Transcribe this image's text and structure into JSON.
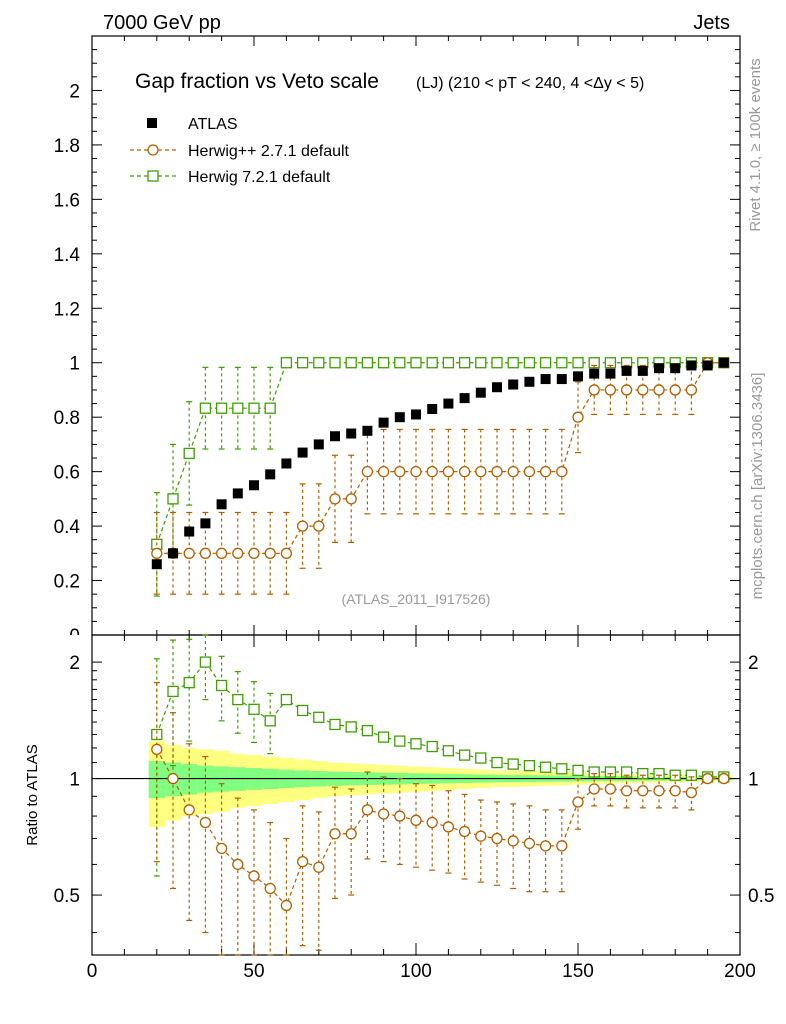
{
  "header": {
    "left": "7000 GeV pp",
    "right": "Jets"
  },
  "side_labels": {
    "rivet": "Rivet 4.1.0, ≥ 100k events",
    "mcplots": "mcplots.cern.ch [arXiv:1306.3436]"
  },
  "main_title": "Gap fraction vs Veto scale",
  "main_subtitle": "(LJ) (210 < pT < 240, 4 <Δy < 5)",
  "analysis_id": "(ATLAS_2011_I917526)",
  "colors": {
    "atlas": "#000000",
    "herwig_pp": "#b35f00",
    "herwig7": "#3f9f00",
    "band_outer": "#ffff80",
    "band_inner": "#80ff80"
  },
  "chart_data": [
    {
      "type": "scatter",
      "panel": "main",
      "xlabel": "",
      "ylabel": "",
      "xlim": [
        0,
        200
      ],
      "ylim": [
        0,
        2.2
      ],
      "yticks": [
        "0.2",
        "0.4",
        "0.6",
        "0.8",
        "1",
        "1.2",
        "1.4",
        "1.6",
        "1.8",
        "2"
      ],
      "legend_position": "top-left",
      "x": [
        20,
        25,
        30,
        35,
        40,
        45,
        50,
        55,
        60,
        65,
        70,
        75,
        80,
        85,
        90,
        95,
        100,
        105,
        110,
        115,
        120,
        125,
        130,
        135,
        140,
        145,
        150,
        155,
        160,
        165,
        170,
        175,
        180,
        185,
        190,
        195
      ],
      "series": [
        {
          "name": "ATLAS",
          "marker": "filled-square",
          "values": [
            0.26,
            0.3,
            0.38,
            0.41,
            0.48,
            0.52,
            0.55,
            0.59,
            0.63,
            0.67,
            0.7,
            0.73,
            0.74,
            0.75,
            0.78,
            0.8,
            0.81,
            0.83,
            0.85,
            0.87,
            0.89,
            0.91,
            0.92,
            0.93,
            0.94,
            0.94,
            0.95,
            0.96,
            0.96,
            0.97,
            0.97,
            0.98,
            0.98,
            0.99,
            0.99,
            1.0
          ]
        },
        {
          "name": "Herwig++ 2.7.1 default",
          "marker": "open-circle",
          "values": [
            0.3,
            0.3,
            0.3,
            0.3,
            0.3,
            0.3,
            0.3,
            0.3,
            0.3,
            0.4,
            0.4,
            0.5,
            0.5,
            0.6,
            0.6,
            0.6,
            0.6,
            0.6,
            0.6,
            0.6,
            0.6,
            0.6,
            0.6,
            0.6,
            0.6,
            0.6,
            0.8,
            0.9,
            0.9,
            0.9,
            0.9,
            0.9,
            0.9,
            0.9,
            1.0,
            1.0
          ],
          "errors": [
            0.15,
            0.15,
            0.15,
            0.15,
            0.15,
            0.15,
            0.15,
            0.15,
            0.15,
            0.155,
            0.155,
            0.16,
            0.16,
            0.155,
            0.155,
            0.155,
            0.155,
            0.155,
            0.155,
            0.155,
            0.155,
            0.155,
            0.155,
            0.155,
            0.155,
            0.155,
            0.13,
            0.09,
            0.09,
            0.09,
            0.09,
            0.09,
            0.09,
            0.09,
            0.01,
            0.01
          ]
        },
        {
          "name": "Herwig 7.2.1 default",
          "marker": "open-square",
          "values": [
            0.333,
            0.5,
            0.667,
            0.833,
            0.833,
            0.833,
            0.833,
            0.833,
            1.0,
            1.0,
            1.0,
            1.0,
            1.0,
            1.0,
            1.0,
            1.0,
            1.0,
            1.0,
            1.0,
            1.0,
            1.0,
            1.0,
            1.0,
            1.0,
            1.0,
            1.0,
            1.0,
            1.0,
            1.0,
            1.0,
            1.0,
            1.0,
            1.0,
            1.0,
            1.0,
            1.0
          ],
          "errors": [
            0.19,
            0.2,
            0.19,
            0.15,
            0.15,
            0.15,
            0.15,
            0.15,
            0.01,
            0.01,
            0.01,
            0.01,
            0.01,
            0.01,
            0.01,
            0.01,
            0.01,
            0.01,
            0.01,
            0.01,
            0.01,
            0.01,
            0.01,
            0.01,
            0.01,
            0.01,
            0.01,
            0.01,
            0.01,
            0.01,
            0.01,
            0.01,
            0.01,
            0.01,
            0.01,
            0.01
          ]
        }
      ]
    },
    {
      "type": "scatter",
      "panel": "ratio",
      "xlabel": "",
      "ylabel": "Ratio to ATLAS",
      "xlim": [
        0,
        200
      ],
      "ylim": [
        0.35,
        2.35
      ],
      "ytick_values": [
        0.5,
        1,
        2
      ],
      "yticks": [
        "0.5",
        "1",
        "2"
      ],
      "xticks": [
        "0",
        "50",
        "100",
        "150",
        "200"
      ],
      "x": [
        20,
        25,
        30,
        35,
        40,
        45,
        50,
        55,
        60,
        65,
        70,
        75,
        80,
        85,
        90,
        95,
        100,
        105,
        110,
        115,
        120,
        125,
        130,
        135,
        140,
        145,
        150,
        155,
        160,
        165,
        170,
        175,
        180,
        185,
        190,
        195
      ],
      "band": {
        "outer_half_width": [
          0.25,
          0.22,
          0.2,
          0.19,
          0.18,
          0.16,
          0.15,
          0.14,
          0.13,
          0.12,
          0.11,
          0.1,
          0.095,
          0.09,
          0.085,
          0.08,
          0.075,
          0.07,
          0.065,
          0.06,
          0.055,
          0.05,
          0.048,
          0.045,
          0.042,
          0.04,
          0.035,
          0.03,
          0.028,
          0.026,
          0.024,
          0.022,
          0.02,
          0.018,
          0.016,
          0.015
        ],
        "inner_half_width": [
          0.11,
          0.1,
          0.09,
          0.08,
          0.075,
          0.07,
          0.065,
          0.06,
          0.055,
          0.05,
          0.046,
          0.042,
          0.04,
          0.038,
          0.036,
          0.034,
          0.032,
          0.03,
          0.028,
          0.026,
          0.024,
          0.022,
          0.021,
          0.02,
          0.019,
          0.018,
          0.016,
          0.015,
          0.014,
          0.013,
          0.012,
          0.011,
          0.01,
          0.009,
          0.008,
          0.008
        ]
      },
      "series": [
        {
          "name": "Herwig++ 2.7.1 default",
          "values": [
            1.19,
            1.0,
            0.83,
            0.77,
            0.66,
            0.6,
            0.56,
            0.52,
            0.47,
            0.61,
            0.59,
            0.72,
            0.72,
            0.83,
            0.81,
            0.8,
            0.78,
            0.77,
            0.75,
            0.73,
            0.71,
            0.7,
            0.69,
            0.68,
            0.67,
            0.67,
            0.87,
            0.94,
            0.94,
            0.93,
            0.93,
            0.93,
            0.93,
            0.92,
            1.0,
            1.0
          ],
          "errors": [
            0.58,
            0.48,
            0.4,
            0.37,
            0.31,
            0.29,
            0.27,
            0.25,
            0.23,
            0.24,
            0.23,
            0.23,
            0.22,
            0.21,
            0.2,
            0.2,
            0.19,
            0.19,
            0.18,
            0.18,
            0.17,
            0.17,
            0.17,
            0.17,
            0.16,
            0.16,
            0.13,
            0.09,
            0.09,
            0.09,
            0.09,
            0.09,
            0.09,
            0.09,
            0.01,
            0.01
          ]
        },
        {
          "name": "Herwig 7.2.1 default",
          "values": [
            1.3,
            1.68,
            1.77,
            2.0,
            1.74,
            1.6,
            1.51,
            1.41,
            1.6,
            1.5,
            1.44,
            1.38,
            1.36,
            1.33,
            1.28,
            1.25,
            1.23,
            1.21,
            1.18,
            1.15,
            1.13,
            1.1,
            1.09,
            1.08,
            1.07,
            1.06,
            1.05,
            1.04,
            1.04,
            1.04,
            1.03,
            1.03,
            1.02,
            1.02,
            1.01,
            1.01
          ],
          "errors": [
            0.74,
            0.6,
            0.52,
            0.4,
            0.33,
            0.29,
            0.27,
            0.25,
            0.01,
            0.01,
            0.01,
            0.01,
            0.01,
            0.01,
            0.01,
            0.01,
            0.01,
            0.01,
            0.01,
            0.01,
            0.01,
            0.01,
            0.01,
            0.01,
            0.01,
            0.01,
            0.01,
            0.01,
            0.01,
            0.01,
            0.01,
            0.01,
            0.01,
            0.01,
            0.01,
            0.01
          ]
        }
      ]
    }
  ]
}
